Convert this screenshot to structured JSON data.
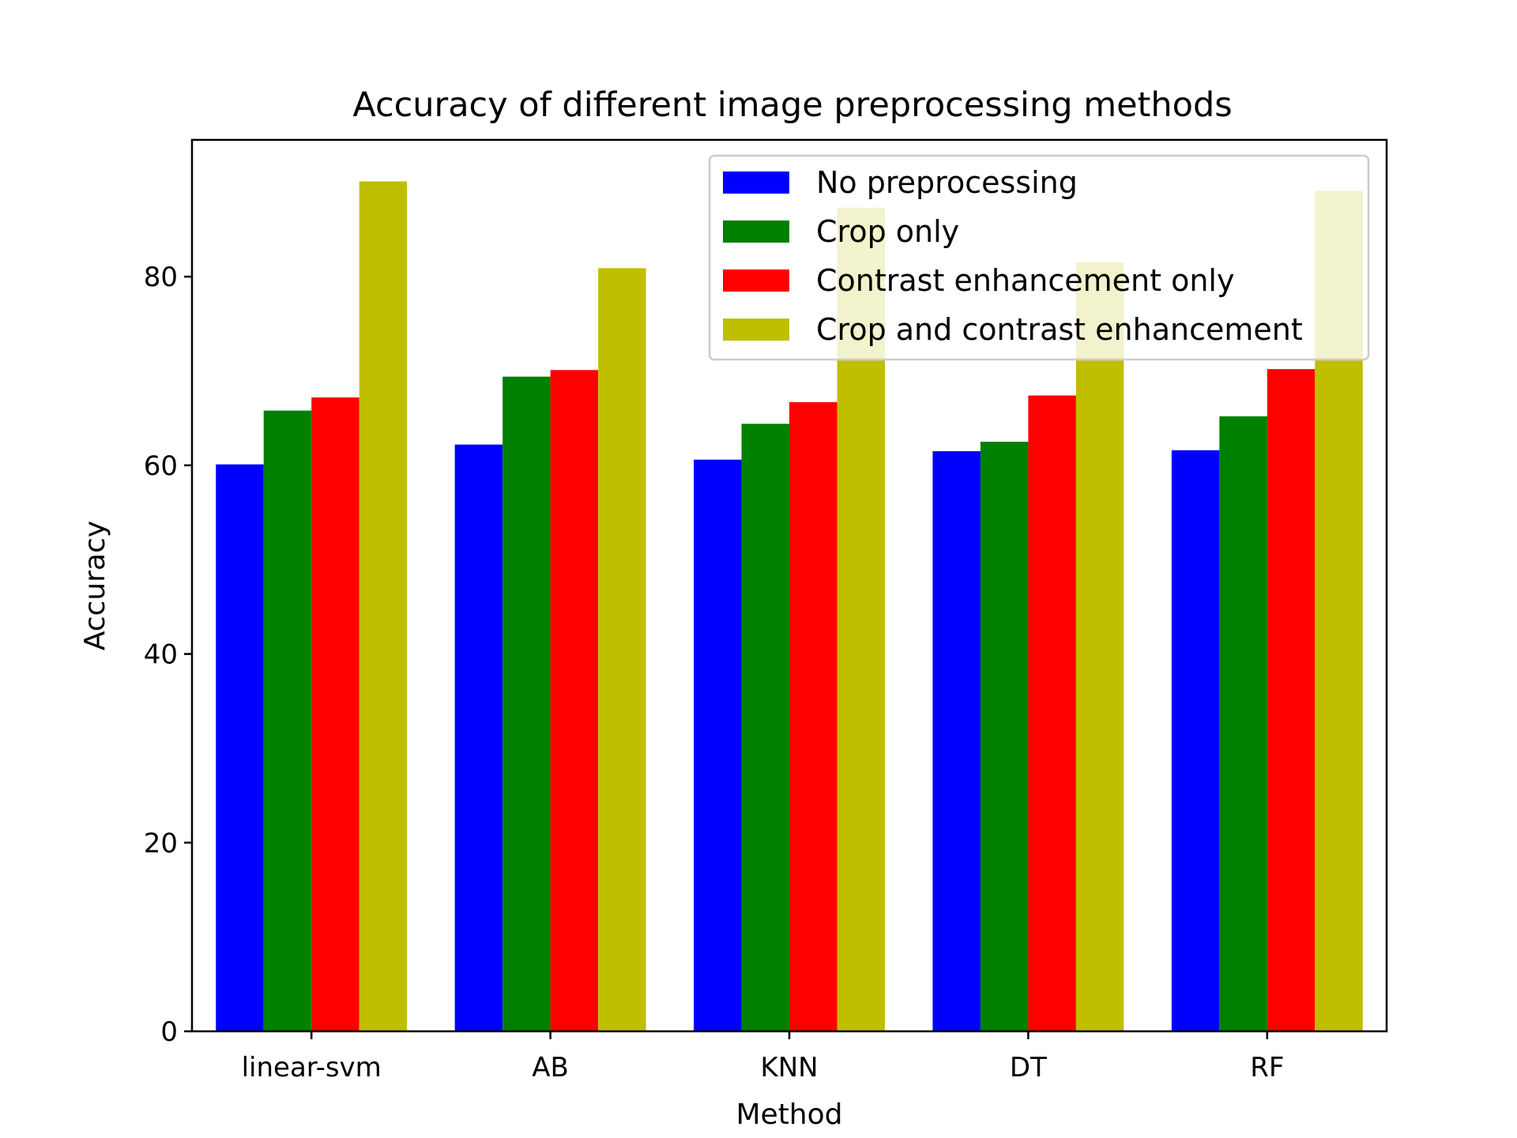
{
  "chart_data": {
    "type": "bar",
    "title": "Accuracy of different image preprocessing methods",
    "xlabel": "Method",
    "ylabel": "Accuracy",
    "categories": [
      "linear-svm",
      "AB",
      "KNN",
      "DT",
      "RF"
    ],
    "ylim": [
      0,
      94.5
    ],
    "yticks": [
      "0",
      "20",
      "40",
      "60",
      "80"
    ],
    "grid": false,
    "legend_position": "top-right",
    "series": [
      {
        "name": "No preprocessing",
        "color": "#0000ff",
        "values": [
          60.1,
          62.2,
          60.6,
          61.5,
          61.6
        ]
      },
      {
        "name": "Crop only",
        "color": "#008000",
        "values": [
          65.8,
          69.4,
          64.4,
          62.5,
          65.2
        ]
      },
      {
        "name": "Contrast enhancement only",
        "color": "#ff0000",
        "values": [
          67.2,
          70.1,
          66.7,
          67.4,
          70.2
        ]
      },
      {
        "name": "Crop and contrast enhancement",
        "color": "#bfbf00",
        "values": [
          90.1,
          80.9,
          87.3,
          81.5,
          89.1
        ]
      }
    ]
  }
}
